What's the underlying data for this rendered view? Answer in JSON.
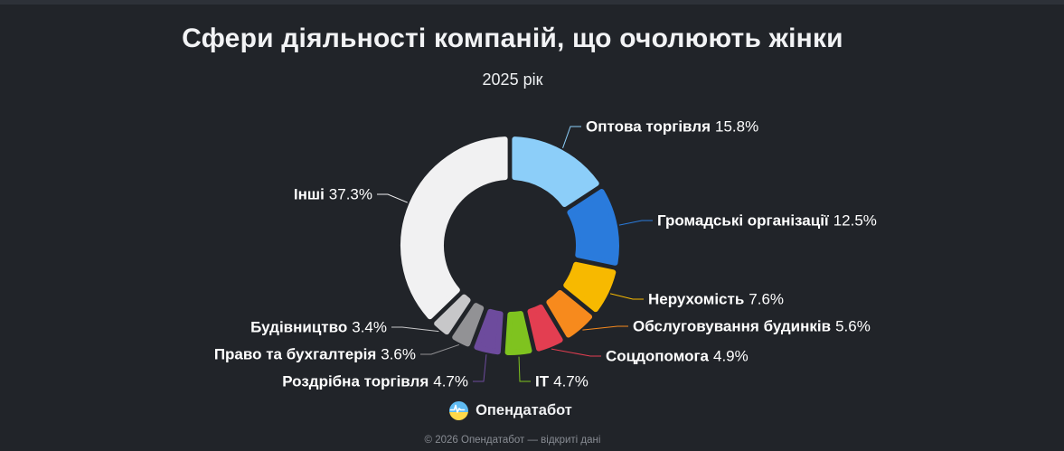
{
  "page": {
    "title": "Сфери діяльності компаній, що очолюють жінки",
    "subtitle": "2025 рік",
    "brand": "Опендатабот",
    "footer": "© 2026 Опендатабот — відкриті дані",
    "background_color": "#212429",
    "accent_text_color": "#ffffff"
  },
  "logo": {
    "name": "opendatabot-logo",
    "top_color": "#5fbbf2",
    "bottom_color": "#ffd94a",
    "pulse_color": "#ffffff"
  },
  "chart_data": {
    "type": "pie",
    "donut": true,
    "start_angle_deg": 0,
    "direction": "clockwise",
    "title": "Сфери діяльності компаній, що очолюють жінки",
    "subtitle": "2025 рік",
    "unit": "%",
    "legend": false,
    "data_label_format": "name value%",
    "series": [
      {
        "label": "Оптова торгівля",
        "value": 15.8,
        "color": "#8ccef9"
      },
      {
        "label": "Громадські організації",
        "value": 12.5,
        "color": "#2a7bdc"
      },
      {
        "label": "Нерухомість",
        "value": 7.6,
        "color": "#f7b900"
      },
      {
        "label": "Обслуговування будинків",
        "value": 5.6,
        "color": "#f78a1d"
      },
      {
        "label": "Соцдопомога",
        "value": 4.9,
        "color": "#e33e51"
      },
      {
        "label": "IT",
        "value": 4.7,
        "color": "#7fc31f"
      },
      {
        "label": "Роздрібна торгівля",
        "value": 4.7,
        "color": "#6d4b9d"
      },
      {
        "label": "Право та бухгалтерія",
        "value": 3.6,
        "color": "#929295"
      },
      {
        "label": "Будівництво",
        "value": 3.4,
        "color": "#c7c7c9"
      },
      {
        "label": "Інші",
        "value": 37.3,
        "color": "#f1f1f2"
      }
    ]
  }
}
